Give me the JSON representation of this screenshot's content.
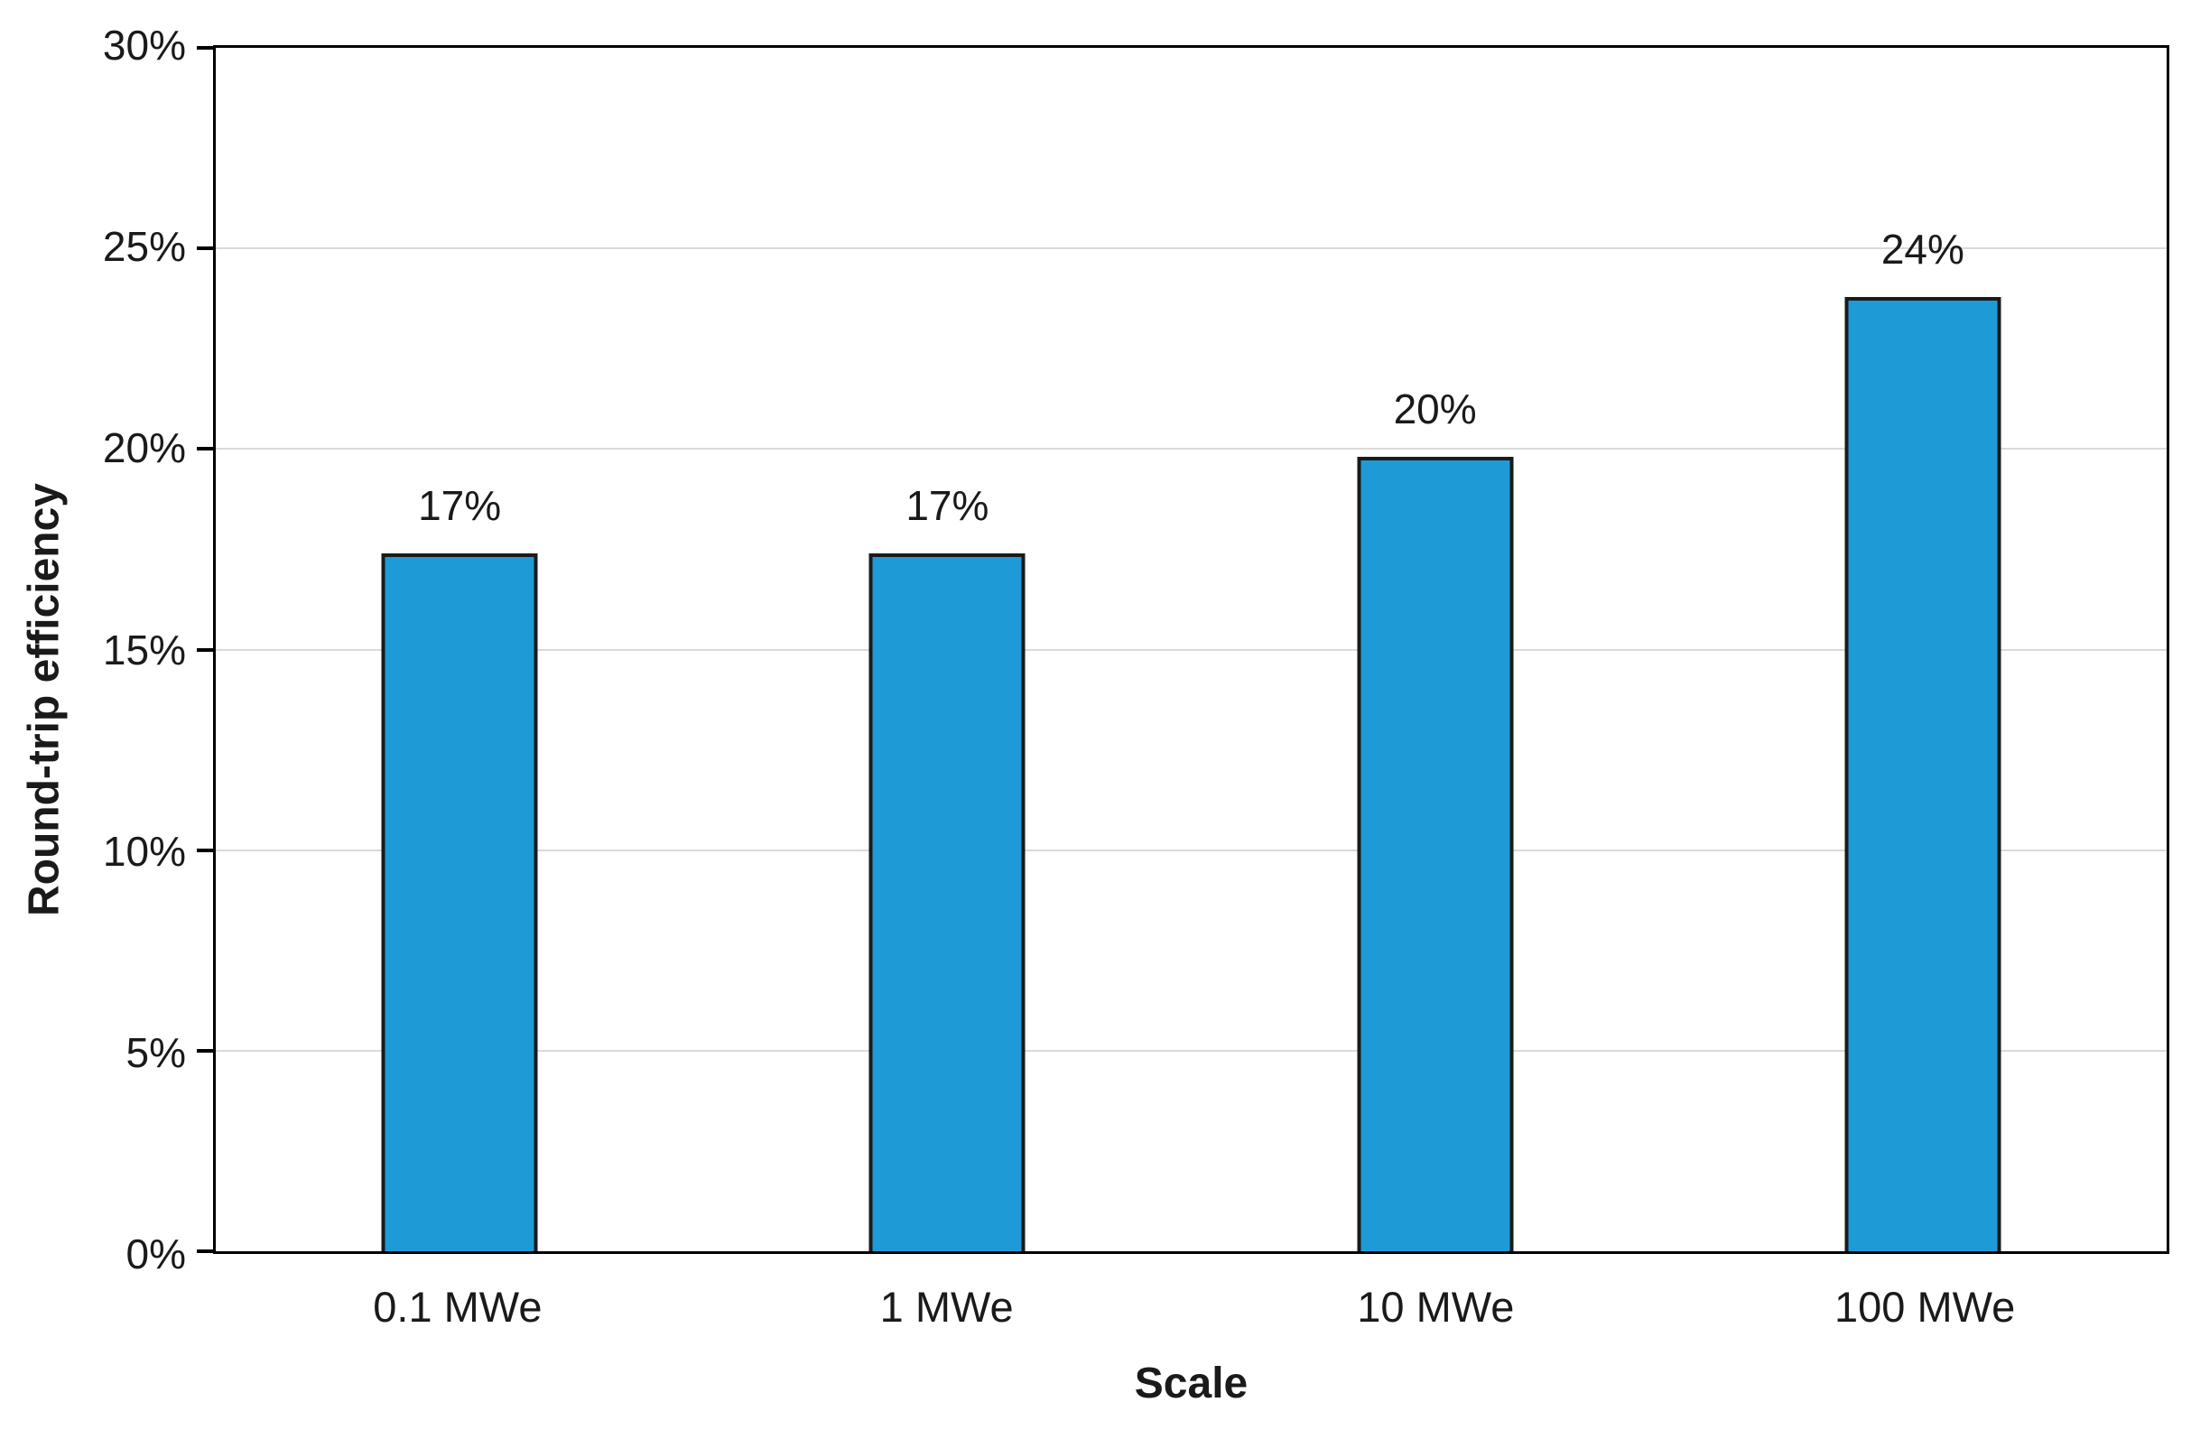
{
  "chart_data": {
    "type": "bar",
    "title": "",
    "xlabel": "Scale",
    "ylabel": "Round-trip efficiency",
    "categories": [
      "0.1 MWe",
      "1 MWe",
      "10 MWe",
      "100 MWe"
    ],
    "values": [
      17.4,
      17.4,
      19.8,
      23.8
    ],
    "bar_labels": [
      "17%",
      "17%",
      "20%",
      "24%"
    ],
    "y_tick_values": [
      0,
      5,
      10,
      15,
      20,
      25,
      30
    ],
    "y_tick_labels": [
      "0%",
      "5%",
      "10%",
      "15%",
      "20%",
      "25%",
      "30%"
    ],
    "ylim": [
      0,
      30
    ],
    "grid": true,
    "legend": "none",
    "colors": {
      "bar_fill": "#1E9BD7",
      "bar_border": "#1A1A1A",
      "gridline": "#DADADA",
      "axis": "#000000",
      "text": "#1A1A1A",
      "background": "#FFFFFF"
    }
  }
}
